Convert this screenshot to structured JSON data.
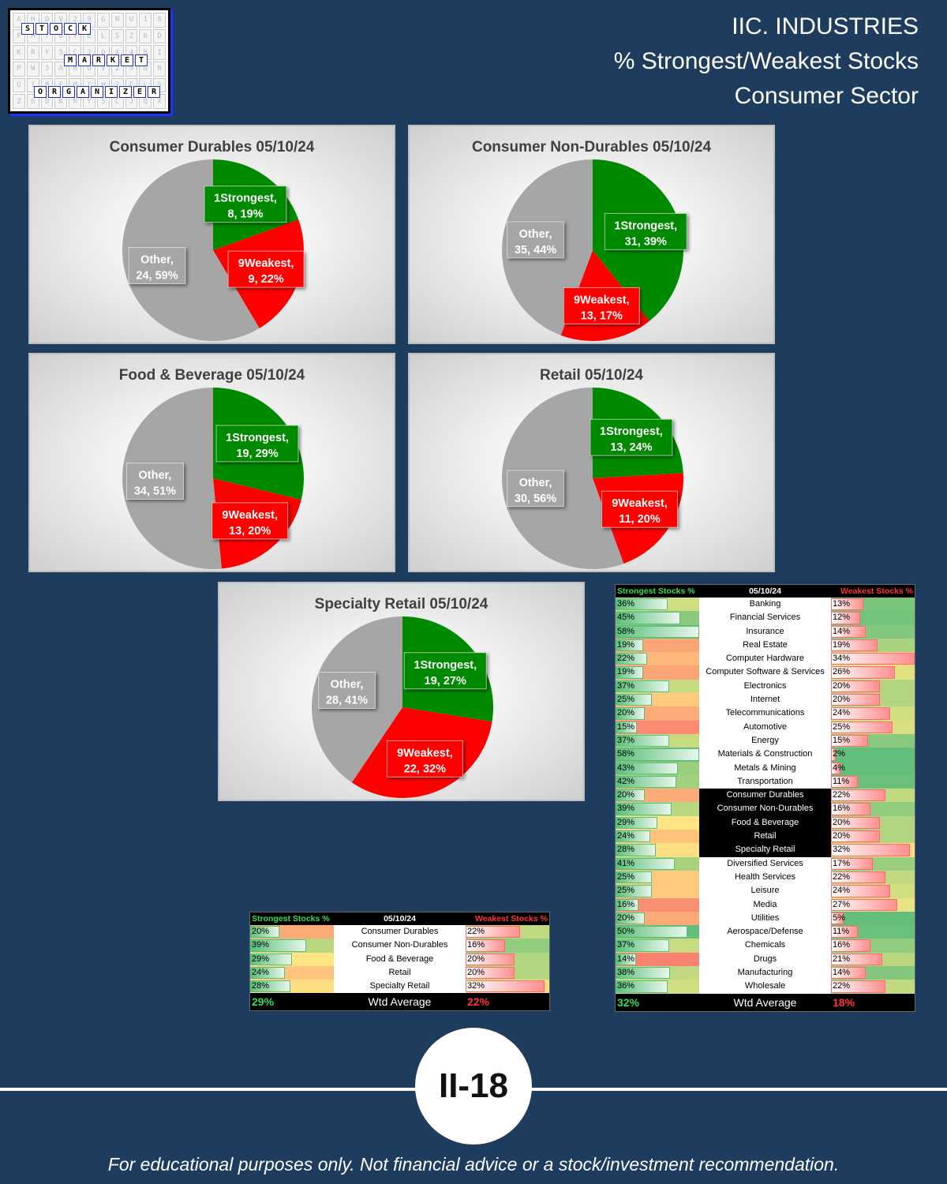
{
  "header": {
    "line1": "IIC. INDUSTRIES",
    "line2": "% Strongest/Weakest Stocks",
    "line3": "Consumer Sector"
  },
  "logo": {
    "words": [
      "STOCK",
      "MARKET",
      "ORGANIZER"
    ]
  },
  "colors": {
    "strongest": "#008a00",
    "weakest": "#ff0000",
    "other": "#a6a6a6",
    "background": "#1e3c5e"
  },
  "chart_data": [
    {
      "type": "pie",
      "title": "Consumer Durables 05/10/24",
      "slices": [
        {
          "name": "1Strongest",
          "value": 8,
          "pct": "19%"
        },
        {
          "name": "9Weakest",
          "value": 9,
          "pct": "22%"
        },
        {
          "name": "Other",
          "value": 24,
          "pct": "59%"
        }
      ]
    },
    {
      "type": "pie",
      "title": "Consumer Non-Durables 05/10/24",
      "slices": [
        {
          "name": "1Strongest",
          "value": 31,
          "pct": "39%"
        },
        {
          "name": "9Weakest",
          "value": 13,
          "pct": "17%"
        },
        {
          "name": "Other",
          "value": 35,
          "pct": "44%"
        }
      ]
    },
    {
      "type": "pie",
      "title": "Food & Beverage 05/10/24",
      "slices": [
        {
          "name": "1Strongest",
          "value": 19,
          "pct": "29%"
        },
        {
          "name": "9Weakest",
          "value": 13,
          "pct": "20%"
        },
        {
          "name": "Other",
          "value": 34,
          "pct": "51%"
        }
      ]
    },
    {
      "type": "pie",
      "title": "Retail 05/10/24",
      "slices": [
        {
          "name": "1Strongest",
          "value": 13,
          "pct": "24%"
        },
        {
          "name": "9Weakest",
          "value": 11,
          "pct": "20%"
        },
        {
          "name": "Other",
          "value": 30,
          "pct": "56%"
        }
      ]
    },
    {
      "type": "pie",
      "title": "Specialty Retail 05/10/24",
      "slices": [
        {
          "name": "1Strongest",
          "value": 19,
          "pct": "27%"
        },
        {
          "name": "9Weakest",
          "value": 22,
          "pct": "32%"
        },
        {
          "name": "Other",
          "value": 28,
          "pct": "41%"
        }
      ]
    },
    {
      "type": "table",
      "headers": [
        "Strongest Stocks %",
        "05/10/24",
        "Weakest Stocks %"
      ],
      "rows": [
        {
          "industry": "Consumer Durables",
          "strongest": 20,
          "weakest": 22
        },
        {
          "industry": "Consumer Non-Durables",
          "strongest": 39,
          "weakest": 16
        },
        {
          "industry": "Food & Beverage",
          "strongest": 29,
          "weakest": 20
        },
        {
          "industry": "Retail",
          "strongest": 24,
          "weakest": 20
        },
        {
          "industry": "Specialty Retail",
          "strongest": 28,
          "weakest": 32
        }
      ],
      "footer": {
        "strongest": "29%",
        "label": "Wtd Average",
        "weakest": "22%"
      }
    },
    {
      "type": "table",
      "headers": [
        "Strongest Stocks %",
        "05/10/24",
        "Weakest Stocks %"
      ],
      "rows": [
        {
          "industry": "Banking",
          "strongest": 36,
          "weakest": 13
        },
        {
          "industry": "Financial Services",
          "strongest": 45,
          "weakest": 12
        },
        {
          "industry": "Insurance",
          "strongest": 58,
          "weakest": 14
        },
        {
          "industry": "Real Estate",
          "strongest": 19,
          "weakest": 19
        },
        {
          "industry": "Computer Hardware",
          "strongest": 22,
          "weakest": 34
        },
        {
          "industry": "Computer Software & Services",
          "strongest": 19,
          "weakest": 26
        },
        {
          "industry": "Electronics",
          "strongest": 37,
          "weakest": 20
        },
        {
          "industry": "Internet",
          "strongest": 25,
          "weakest": 20
        },
        {
          "industry": "Telecommunications",
          "strongest": 20,
          "weakest": 24
        },
        {
          "industry": "Automotive",
          "strongest": 15,
          "weakest": 25
        },
        {
          "industry": "Energy",
          "strongest": 37,
          "weakest": 15
        },
        {
          "industry": "Materials & Construction",
          "strongest": 58,
          "weakest": 2
        },
        {
          "industry": "Metals & Mining",
          "strongest": 43,
          "weakest": 4
        },
        {
          "industry": "Transportation",
          "strongest": 42,
          "weakest": 11
        },
        {
          "industry": "Consumer Durables",
          "strongest": 20,
          "weakest": 22,
          "highlight": true
        },
        {
          "industry": "Consumer Non-Durables",
          "strongest": 39,
          "weakest": 16,
          "highlight": true
        },
        {
          "industry": "Food & Beverage",
          "strongest": 29,
          "weakest": 20,
          "highlight": true
        },
        {
          "industry": "Retail",
          "strongest": 24,
          "weakest": 20,
          "highlight": true
        },
        {
          "industry": "Specialty Retail",
          "strongest": 28,
          "weakest": 32,
          "highlight": true
        },
        {
          "industry": "Diversified Services",
          "strongest": 41,
          "weakest": 17
        },
        {
          "industry": "Health Services",
          "strongest": 25,
          "weakest": 22
        },
        {
          "industry": "Leisure",
          "strongest": 25,
          "weakest": 24
        },
        {
          "industry": "Media",
          "strongest": 16,
          "weakest": 27
        },
        {
          "industry": "Utilities",
          "strongest": 20,
          "weakest": 5
        },
        {
          "industry": "Aerospace/Defense",
          "strongest": 50,
          "weakest": 11
        },
        {
          "industry": "Chemicals",
          "strongest": 37,
          "weakest": 16
        },
        {
          "industry": "Drugs",
          "strongest": 14,
          "weakest": 21
        },
        {
          "industry": "Manufacturing",
          "strongest": 38,
          "weakest": 14
        },
        {
          "industry": "Wholesale",
          "strongest": 36,
          "weakest": 22
        }
      ],
      "footer": {
        "strongest": "32%",
        "label": "Wtd Average",
        "weakest": "18%"
      }
    }
  ],
  "page_number": "II-18",
  "disclaimer": "For educational purposes only. Not financial advice or a stock/investment recommendation."
}
